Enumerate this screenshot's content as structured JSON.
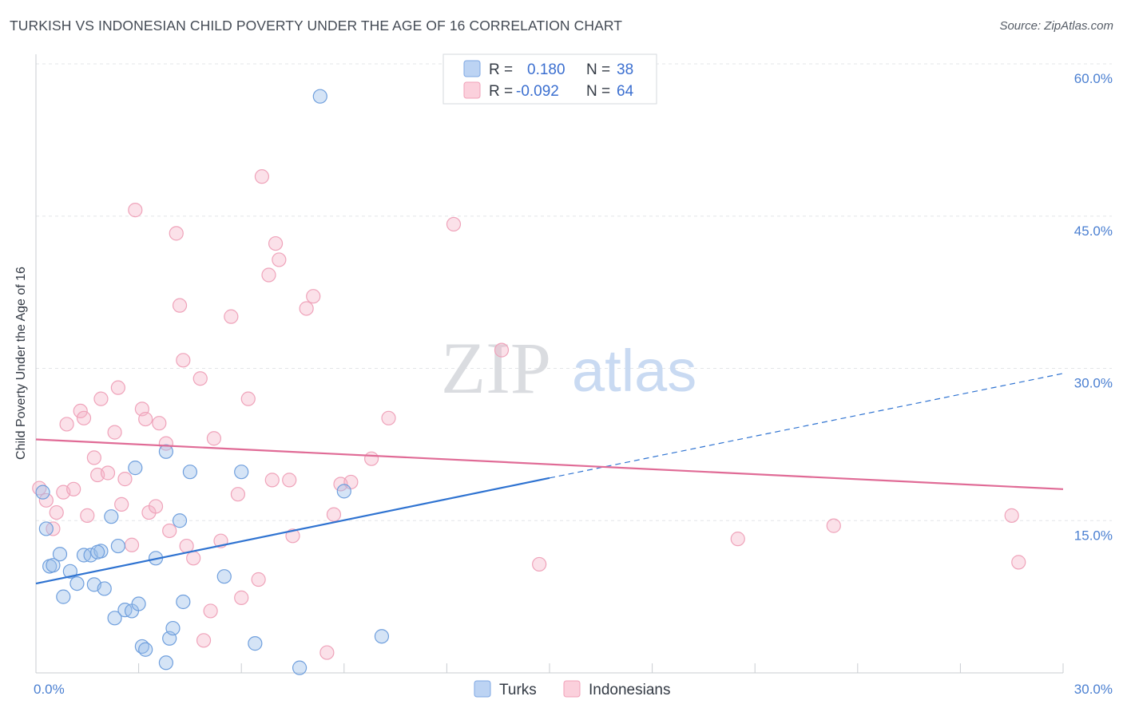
{
  "title": "TURKISH VS INDONESIAN CHILD POVERTY UNDER THE AGE OF 16 CORRELATION CHART",
  "source": "Source: ZipAtlas.com",
  "watermark": {
    "zip": "ZIP",
    "atlas": "atlas"
  },
  "chart_data": {
    "type": "scatter",
    "ylabel": "Child Poverty Under the Age of 16",
    "xlim": [
      0,
      30
    ],
    "ylim": [
      0,
      60
    ],
    "x_tick_labels": [
      {
        "value": 0,
        "label": "0.0%"
      },
      {
        "value": 30,
        "label": "30.0%"
      }
    ],
    "y_tick_labels": [
      {
        "value": 15,
        "label": "15.0%"
      },
      {
        "value": 30,
        "label": "30.0%"
      },
      {
        "value": 45,
        "label": "45.0%"
      },
      {
        "value": 60,
        "label": "60.0%"
      }
    ],
    "grid": true,
    "legend_position": "top-center",
    "colors": {
      "turks": "#9bbfea",
      "turks_line": "#2f73d1",
      "indonesians": "#f4b0c5",
      "indonesians_line": "#e06b96"
    },
    "stats": [
      {
        "r_label": "R =",
        "r": "0.180",
        "n_label": "N =",
        "n": "38"
      },
      {
        "r_label": "R =",
        "r": "-0.092",
        "n_label": "N =",
        "n": "64"
      }
    ],
    "series": [
      {
        "name": "Turks",
        "trend": {
          "x0": 0,
          "y0": 8.8,
          "x1": 15,
          "y1": 19.2,
          "dash_to_x": 30,
          "dash_to_y": 29.5
        },
        "points": [
          [
            0.2,
            17.8
          ],
          [
            0.3,
            14.2
          ],
          [
            0.4,
            10.5
          ],
          [
            0.5,
            10.6
          ],
          [
            0.7,
            11.7
          ],
          [
            0.8,
            7.5
          ],
          [
            1.0,
            10.0
          ],
          [
            1.2,
            8.8
          ],
          [
            1.4,
            11.6
          ],
          [
            1.6,
            11.6
          ],
          [
            1.7,
            8.7
          ],
          [
            1.9,
            12.0
          ],
          [
            2.0,
            8.3
          ],
          [
            2.2,
            15.4
          ],
          [
            2.3,
            5.4
          ],
          [
            2.4,
            12.5
          ],
          [
            2.6,
            6.2
          ],
          [
            2.8,
            6.1
          ],
          [
            2.9,
            20.2
          ],
          [
            3.0,
            6.8
          ],
          [
            3.1,
            2.6
          ],
          [
            3.2,
            2.3
          ],
          [
            3.5,
            11.3
          ],
          [
            3.8,
            21.8
          ],
          [
            3.8,
            1.0
          ],
          [
            3.9,
            3.4
          ],
          [
            4.0,
            4.4
          ],
          [
            4.2,
            15.0
          ],
          [
            4.3,
            7.0
          ],
          [
            4.5,
            19.8
          ],
          [
            5.5,
            9.5
          ],
          [
            6.0,
            19.8
          ],
          [
            6.4,
            2.9
          ],
          [
            7.7,
            0.5
          ],
          [
            8.3,
            56.8
          ],
          [
            9.0,
            17.9
          ],
          [
            10.1,
            3.6
          ],
          [
            1.8,
            11.9
          ]
        ]
      },
      {
        "name": "Indonesians",
        "trend": {
          "x0": 0,
          "y0": 23.0,
          "x1": 30,
          "y1": 18.1
        },
        "points": [
          [
            0.1,
            18.2
          ],
          [
            0.3,
            17.0
          ],
          [
            0.5,
            14.2
          ],
          [
            0.6,
            15.8
          ],
          [
            0.8,
            17.8
          ],
          [
            0.9,
            24.5
          ],
          [
            1.1,
            18.1
          ],
          [
            1.3,
            25.8
          ],
          [
            1.4,
            25.1
          ],
          [
            1.5,
            15.5
          ],
          [
            1.7,
            21.2
          ],
          [
            1.8,
            19.5
          ],
          [
            1.9,
            27.0
          ],
          [
            2.1,
            19.7
          ],
          [
            2.3,
            23.7
          ],
          [
            2.4,
            28.1
          ],
          [
            2.5,
            16.6
          ],
          [
            2.6,
            19.1
          ],
          [
            2.8,
            12.6
          ],
          [
            2.9,
            45.6
          ],
          [
            3.1,
            26.0
          ],
          [
            3.2,
            25.0
          ],
          [
            3.3,
            15.8
          ],
          [
            3.5,
            16.4
          ],
          [
            3.6,
            24.6
          ],
          [
            3.8,
            22.6
          ],
          [
            3.9,
            14.0
          ],
          [
            4.1,
            43.3
          ],
          [
            4.2,
            36.2
          ],
          [
            4.3,
            30.8
          ],
          [
            4.4,
            12.5
          ],
          [
            4.6,
            11.3
          ],
          [
            4.8,
            29.0
          ],
          [
            4.9,
            3.2
          ],
          [
            5.1,
            6.1
          ],
          [
            5.2,
            23.1
          ],
          [
            5.4,
            13.0
          ],
          [
            5.7,
            35.1
          ],
          [
            5.9,
            17.6
          ],
          [
            6.0,
            7.4
          ],
          [
            6.2,
            27.0
          ],
          [
            6.5,
            9.2
          ],
          [
            6.6,
            48.9
          ],
          [
            6.8,
            39.2
          ],
          [
            6.9,
            19.0
          ],
          [
            7.0,
            42.3
          ],
          [
            7.1,
            40.7
          ],
          [
            7.4,
            19.0
          ],
          [
            7.5,
            13.5
          ],
          [
            7.9,
            35.9
          ],
          [
            8.1,
            37.1
          ],
          [
            8.5,
            2.0
          ],
          [
            8.7,
            15.6
          ],
          [
            8.9,
            18.6
          ],
          [
            9.2,
            18.8
          ],
          [
            9.8,
            21.1
          ],
          [
            10.3,
            25.1
          ],
          [
            12.2,
            44.2
          ],
          [
            13.6,
            31.8
          ],
          [
            14.7,
            10.7
          ],
          [
            20.5,
            13.2
          ],
          [
            23.3,
            14.5
          ],
          [
            28.5,
            15.5
          ],
          [
            28.7,
            10.9
          ]
        ]
      }
    ]
  }
}
